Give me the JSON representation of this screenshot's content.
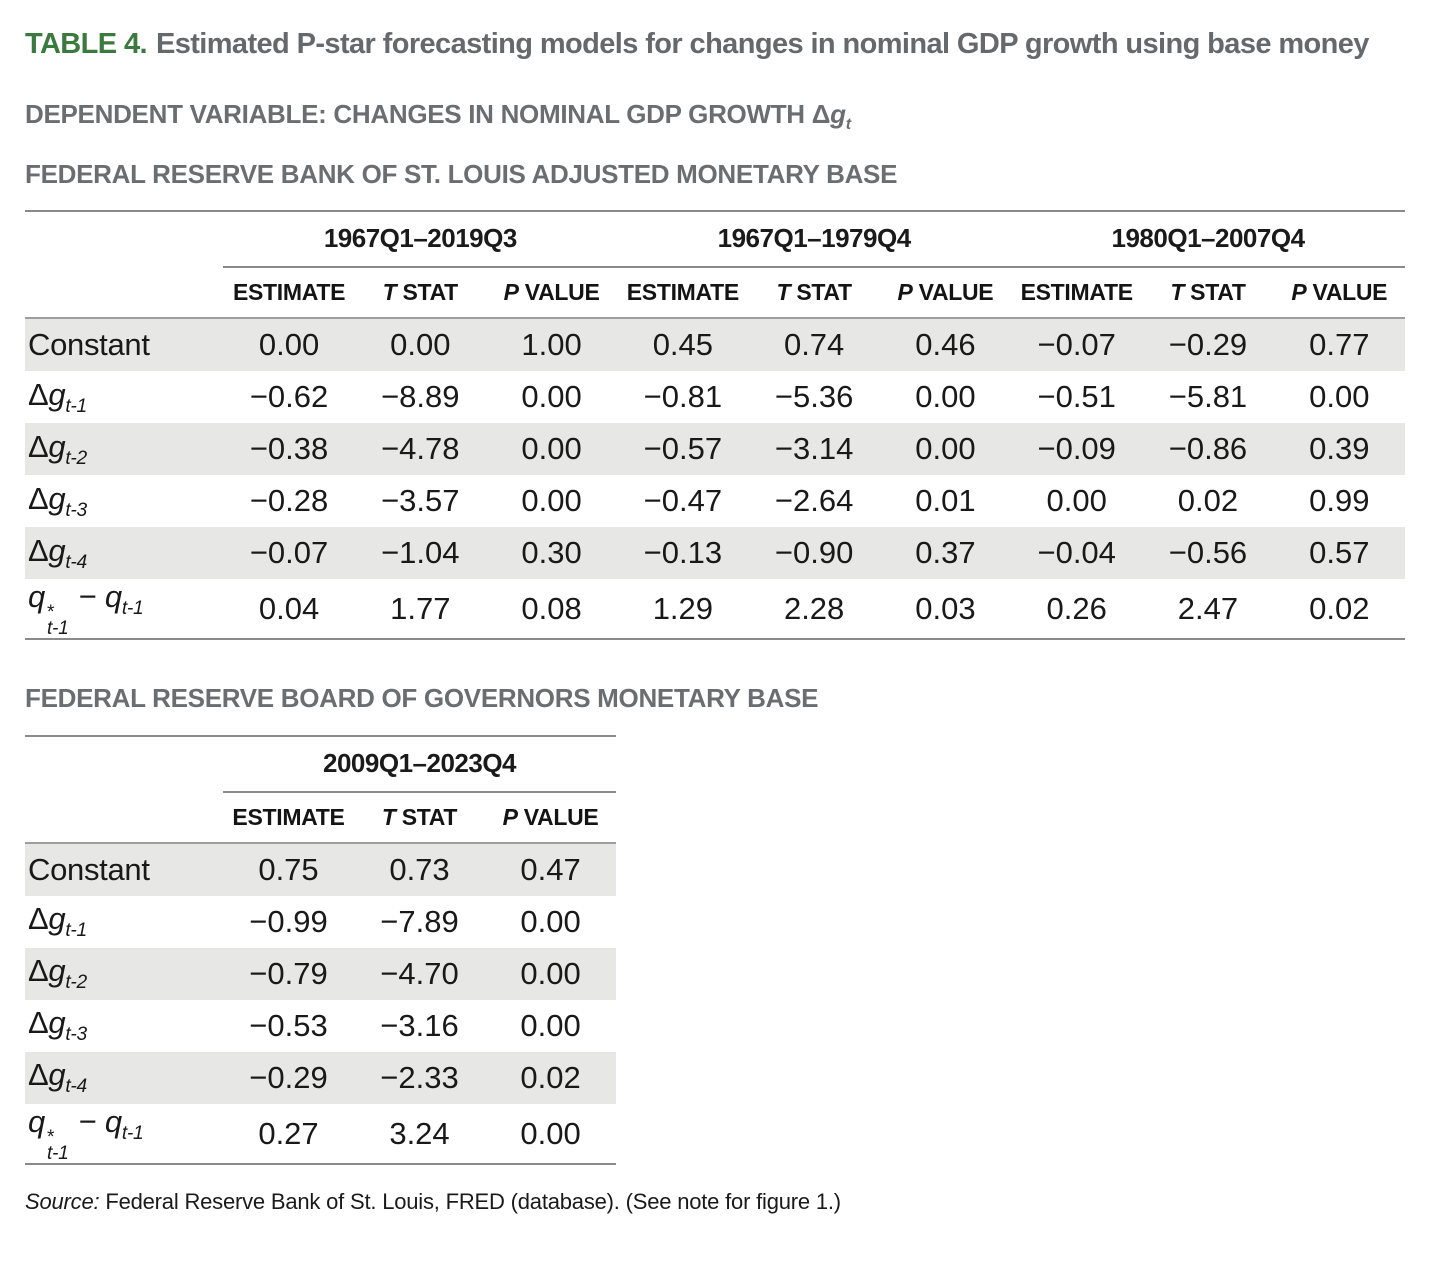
{
  "page": {
    "title_label": "TABLE 4.",
    "title_text": "Estimated P-star forecasting models for changes in nominal GDP growth using base money",
    "dependent_text": "DEPENDENT VARIABLE: CHANGES IN NOMINAL GDP GROWTH ",
    "dep_delta": "Δ",
    "dep_var": "g",
    "dep_sub": "t",
    "source_label": "Source:",
    "source_text": " Federal Reserve Bank of St. Louis, FRED (database). (See note for figure 1.)"
  },
  "colors": {
    "accent_green": "#3b7a3e",
    "heading_gray": "#6b6e70",
    "row_shade": "#e7e7e6",
    "rule_gray": "#8a8a8a"
  },
  "tables": [
    {
      "section_heading": "FEDERAL RESERVE BANK OF ST. LOUIS ADJUSTED MONETARY BASE",
      "groups": [
        "1967Q1–2019Q3",
        "1967Q1–1979Q4",
        "1980Q1–2007Q4"
      ],
      "columns": [
        {
          "i": "",
          "t": "ESTIMATE"
        },
        {
          "i": "T",
          "t": " STAT"
        },
        {
          "i": "P",
          "t": " VALUE"
        }
      ],
      "rows": [
        {
          "label": {
            "type": "text",
            "text": "Constant"
          },
          "values": [
            "0.00",
            "0.00",
            "1.00",
            "0.45",
            "0.74",
            "0.46",
            "−0.07",
            "−0.29",
            "0.77"
          ]
        },
        {
          "label": {
            "type": "delta-g",
            "base": "Δ",
            "var": "g",
            "sub": "t-1"
          },
          "values": [
            "−0.62",
            "−8.89",
            "0.00",
            "−0.81",
            "−5.36",
            "0.00",
            "−0.51",
            "−5.81",
            "0.00"
          ]
        },
        {
          "label": {
            "type": "delta-g",
            "base": "Δ",
            "var": "g",
            "sub": "t-2"
          },
          "values": [
            "−0.38",
            "−4.78",
            "0.00",
            "−0.57",
            "−3.14",
            "0.00",
            "−0.09",
            "−0.86",
            "0.39"
          ]
        },
        {
          "label": {
            "type": "delta-g",
            "base": "Δ",
            "var": "g",
            "sub": "t-3"
          },
          "values": [
            "−0.28",
            "−3.57",
            "0.00",
            "−0.47",
            "−2.64",
            "0.01",
            "0.00",
            "0.02",
            "0.99"
          ]
        },
        {
          "label": {
            "type": "delta-g",
            "base": "Δ",
            "var": "g",
            "sub": "t-4"
          },
          "values": [
            "−0.07",
            "−1.04",
            "0.30",
            "−0.13",
            "−0.90",
            "0.37",
            "−0.04",
            "−0.56",
            "0.57"
          ]
        },
        {
          "label": {
            "type": "q-spread",
            "var": "q",
            "sup": "*",
            "sub": "t-1",
            "minus": "−"
          },
          "values": [
            "0.04",
            "1.77",
            "0.08",
            "1.29",
            "2.28",
            "0.03",
            "0.26",
            "2.47",
            "0.02"
          ]
        }
      ]
    },
    {
      "section_heading": "FEDERAL RESERVE BOARD OF GOVERNORS MONETARY BASE",
      "groups": [
        "2009Q1–2023Q4"
      ],
      "columns": [
        {
          "i": "",
          "t": "ESTIMATE"
        },
        {
          "i": "T",
          "t": " STAT"
        },
        {
          "i": "P",
          "t": " VALUE"
        }
      ],
      "rows": [
        {
          "label": {
            "type": "text",
            "text": "Constant"
          },
          "values": [
            "0.75",
            "0.73",
            "0.47"
          ]
        },
        {
          "label": {
            "type": "delta-g",
            "base": "Δ",
            "var": "g",
            "sub": "t-1"
          },
          "values": [
            "−0.99",
            "−7.89",
            "0.00"
          ]
        },
        {
          "label": {
            "type": "delta-g",
            "base": "Δ",
            "var": "g",
            "sub": "t-2"
          },
          "values": [
            "−0.79",
            "−4.70",
            "0.00"
          ]
        },
        {
          "label": {
            "type": "delta-g",
            "base": "Δ",
            "var": "g",
            "sub": "t-3"
          },
          "values": [
            "−0.53",
            "−3.16",
            "0.00"
          ]
        },
        {
          "label": {
            "type": "delta-g",
            "base": "Δ",
            "var": "g",
            "sub": "t-4"
          },
          "values": [
            "−0.29",
            "−2.33",
            "0.02"
          ]
        },
        {
          "label": {
            "type": "q-spread",
            "var": "q",
            "sup": "*",
            "sub": "t-1",
            "minus": "−"
          },
          "values": [
            "0.27",
            "3.24",
            "0.00"
          ]
        }
      ]
    }
  ]
}
